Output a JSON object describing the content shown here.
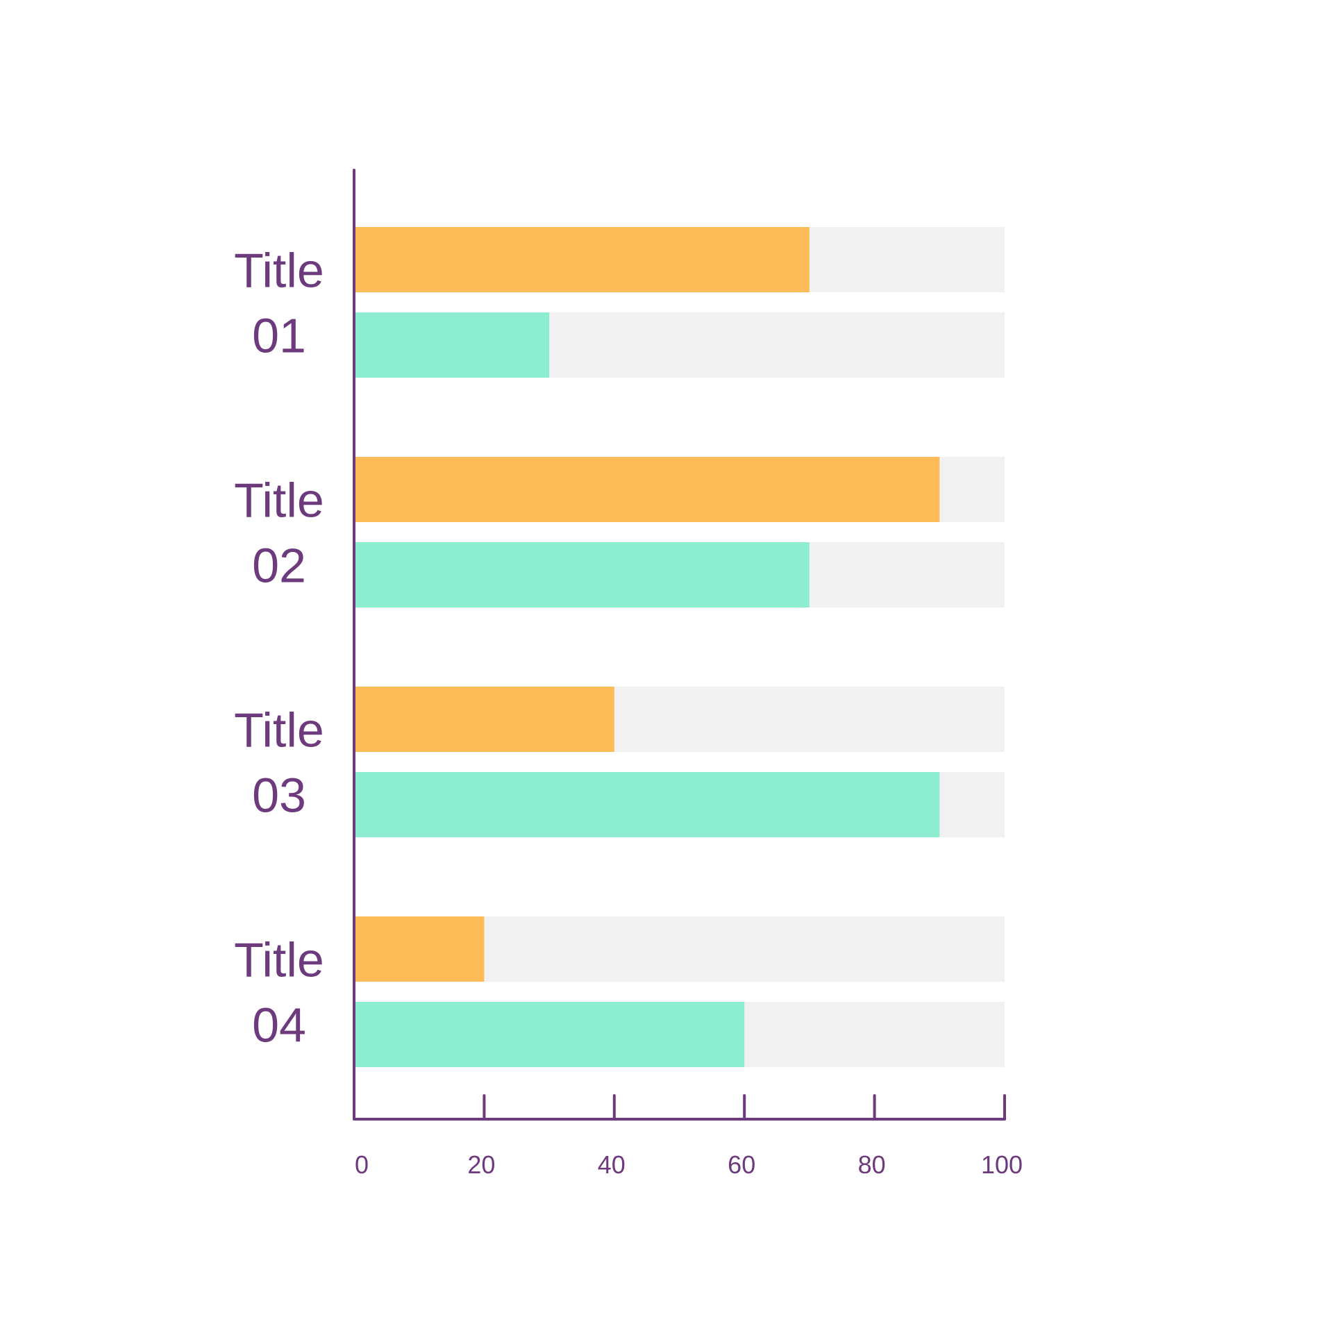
{
  "chart_data": {
    "type": "bar",
    "orientation": "horizontal",
    "categories": [
      {
        "line1": "Title",
        "line2": "01"
      },
      {
        "line1": "Title",
        "line2": "02"
      },
      {
        "line1": "Title",
        "line2": "03"
      },
      {
        "line1": "Title",
        "line2": "04"
      }
    ],
    "series": [
      {
        "values": [
          70,
          90,
          40,
          20
        ],
        "color": "#FDBC57"
      },
      {
        "values": [
          30,
          70,
          90,
          60
        ],
        "color": "#8CEDD1"
      }
    ],
    "xlim": [
      0,
      100
    ],
    "x_ticks": [
      "0",
      "20",
      "40",
      "60",
      "80",
      "100"
    ],
    "track_color": "#F1F1F1",
    "axis_color": "#6E3A7E",
    "label_color": "#6E3A7E",
    "grid": false,
    "legend": "none"
  }
}
